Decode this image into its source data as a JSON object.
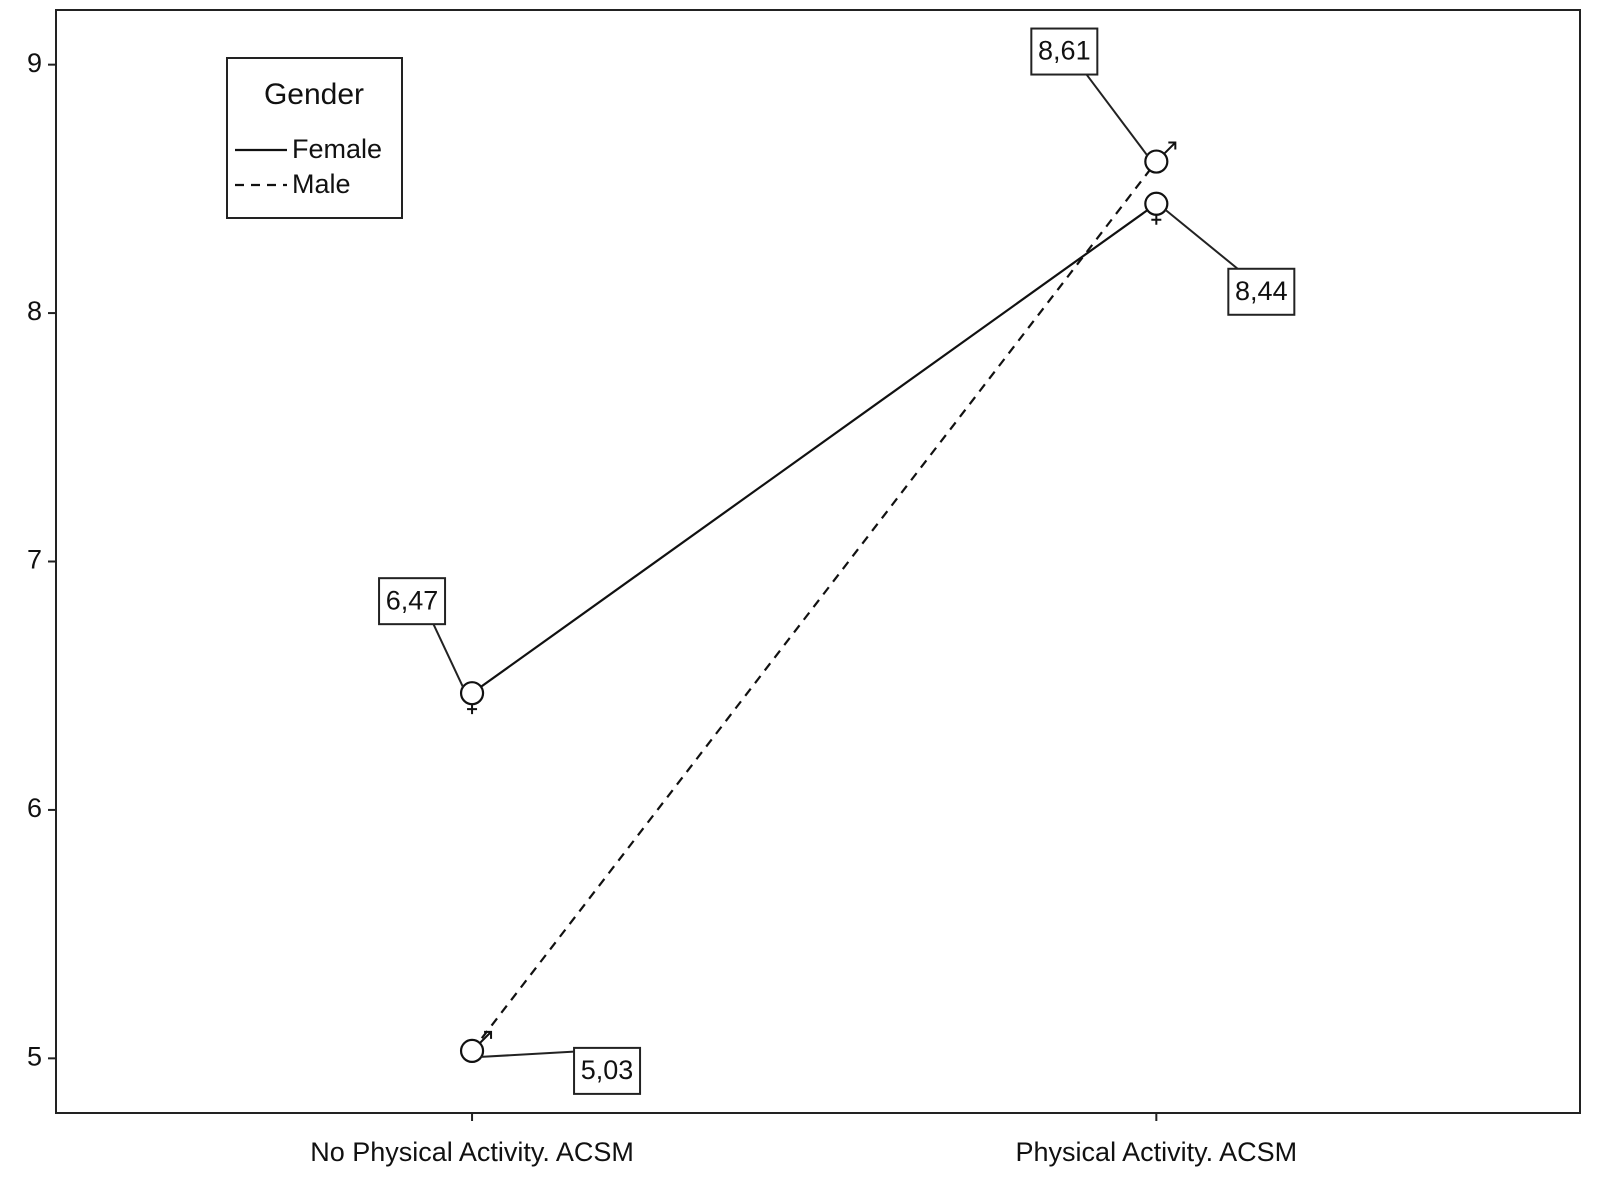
{
  "chart_data": {
    "type": "line",
    "categories": [
      "No Physical Activity. ACSM",
      "Physical Activity. ACSM"
    ],
    "series": [
      {
        "name": "Female",
        "color": "#111111",
        "line_style": "solid",
        "values": [
          6.47,
          8.44
        ],
        "value_labels": [
          "6,47",
          "8,44"
        ]
      },
      {
        "name": "Male",
        "color": "#111111",
        "line_style": "dashed",
        "values": [
          5.03,
          8.61
        ],
        "value_labels": [
          "5,03",
          "8,61"
        ]
      }
    ],
    "ylim": [
      4.78,
      9.22
    ],
    "yticks": [
      5,
      6,
      7,
      8,
      9
    ],
    "legend_title": "Gender",
    "legend_position": "upper left",
    "grid": false
  }
}
